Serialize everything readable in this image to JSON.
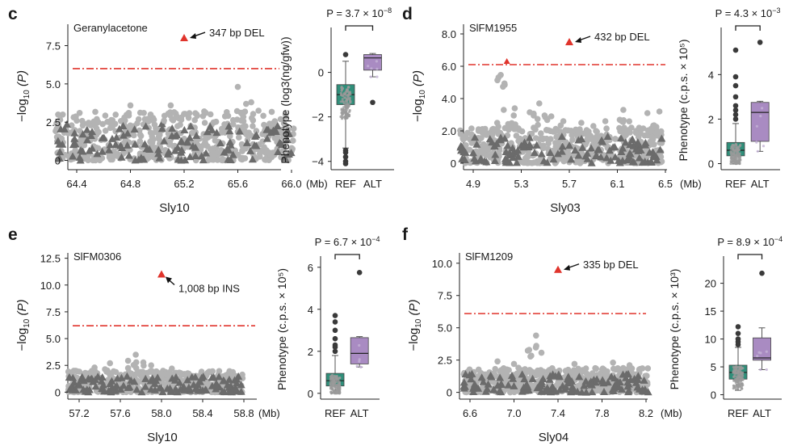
{
  "colors": {
    "snp_light": "#b3b3b3",
    "sv_dark": "#6b6b6b",
    "threshold": "#e0342c",
    "lead": "#e0342c",
    "ref_box": "#2f8f7a",
    "alt_box": "#a98bc2",
    "outlier": "#3a3a3a"
  },
  "chart_data": [
    {
      "panel": "c",
      "type": "scatter",
      "title": "Geranylacetone",
      "x_ticks": [
        "64.4",
        "64.8",
        "65.2",
        "65.6",
        "66.0"
      ],
      "x_unit": "(Mb)",
      "xlim": [
        64.2,
        66.05
      ],
      "xlabel": "Sly10",
      "y_ticks": [
        "0",
        "2.5",
        "5.0",
        "7.5"
      ],
      "ylim": [
        -0.5,
        8.9
      ],
      "ylabel": "-log10 (P)",
      "threshold": 6.0,
      "background_max": 3.2,
      "peaks": [
        [
          64.55,
          2.7
        ],
        [
          64.8,
          3.6
        ],
        [
          64.9,
          3.1
        ],
        [
          65.05,
          2.6
        ],
        [
          65.1,
          3.6
        ],
        [
          65.6,
          4.8
        ],
        [
          65.7,
          3.8
        ],
        [
          65.35,
          3.2
        ],
        [
          64.4,
          2.6
        ]
      ],
      "lead": {
        "x": 65.2,
        "y": 8.0,
        "label": "347 bp DEL",
        "side": "right"
      },
      "box": {
        "p_text": "P = 3.7 × 10",
        "p_exp": "−8",
        "ylabel": "Phenotype (log3(ng/gfw))",
        "y_ticks": [
          "−4",
          "−2",
          "0"
        ],
        "ylim": [
          -4.3,
          1.8
        ],
        "categories": [
          "REF",
          "ALT"
        ],
        "ref": {
          "q1": -1.45,
          "median": -1.0,
          "q3": -0.55,
          "wlo": -3.4,
          "whi": 0.5,
          "outliers": [
            -3.6,
            -3.8,
            -4.0,
            -4.1,
            -3.5,
            0.8
          ]
        },
        "alt": {
          "q1": 0.1,
          "median": 0.65,
          "q3": 0.8,
          "wlo": -0.2,
          "whi": 0.85,
          "outliers": [
            -1.35
          ]
        }
      }
    },
    {
      "panel": "d",
      "type": "scatter",
      "title": "SlFM1955",
      "x_ticks": [
        "4.9",
        "5.3",
        "5.7",
        "6.1",
        "6.5"
      ],
      "x_unit": "(Mb)",
      "xlim": [
        4.75,
        6.5
      ],
      "xlabel": "Sly03",
      "y_ticks": [
        "0",
        "2.0",
        "4.0",
        "6.0",
        "8.0"
      ],
      "ylim": [
        -0.3,
        8.6
      ],
      "ylabel": "-log10 (P)",
      "threshold": 6.1,
      "background_max": 2.2,
      "peaks": [
        [
          5.1,
          2.5
        ],
        [
          5.25,
          2.4
        ],
        [
          5.45,
          3.7
        ],
        [
          5.55,
          2.9
        ],
        [
          5.65,
          2.6
        ],
        [
          5.8,
          2.5
        ],
        [
          5.9,
          2.3
        ],
        [
          6.0,
          2.6
        ],
        [
          6.15,
          3.3
        ],
        [
          6.35,
          3.1
        ],
        [
          6.45,
          3.2
        ],
        [
          5.18,
          6.3
        ]
      ],
      "lead": {
        "x": 5.7,
        "y": 7.5,
        "label": "432 bp DEL",
        "side": "right"
      },
      "box": {
        "p_text": "P = 4.3 × 10",
        "p_exp": "−3",
        "ylabel": "Phenotype (c.p.s. × 10⁵)",
        "y_ticks": [
          "0",
          "2",
          "4"
        ],
        "ylim": [
          -0.2,
          5.9
        ],
        "categories": [
          "REF",
          "ALT"
        ],
        "ref": {
          "q1": 0.35,
          "median": 0.6,
          "q3": 0.95,
          "wlo": 0.0,
          "whi": 1.8,
          "outliers": [
            2.2,
            2.6,
            3.0,
            3.5,
            3.9,
            5.1,
            2.0,
            2.4
          ]
        },
        "alt": {
          "q1": 1.0,
          "median": 2.3,
          "q3": 2.75,
          "wlo": 0.55,
          "whi": 2.8,
          "outliers": [
            5.45
          ]
        }
      }
    },
    {
      "panel": "e",
      "type": "scatter",
      "title": "SlFM0306",
      "x_ticks": [
        "57.2",
        "57.6",
        "58.0",
        "58.4",
        "58.8"
      ],
      "x_unit": "(Mb)",
      "xlim": [
        57.05,
        58.82
      ],
      "xlabel": "Sly10",
      "y_ticks": [
        "0",
        "2.5",
        "5.0",
        "7.5",
        "10.0",
        "12.5"
      ],
      "ylim": [
        -0.5,
        13.0
      ],
      "ylabel": "-log10 (P)",
      "threshold": 6.2,
      "background_max": 2.0,
      "peaks": [
        [
          57.5,
          2.7
        ],
        [
          57.75,
          3.5
        ],
        [
          57.9,
          2.5
        ],
        [
          58.1,
          2.2
        ],
        [
          57.35,
          2.3
        ]
      ],
      "lead": {
        "x": 58.0,
        "y": 11.0,
        "label": "1,008 bp INS",
        "side": "below"
      },
      "box": {
        "p_text": "P = 6.7 × 10",
        "p_exp": "−4",
        "ylabel": "Phenotype (c.p.s. × 10⁵)",
        "y_ticks": [
          "0",
          "2",
          "4",
          "6"
        ],
        "ylim": [
          -0.2,
          6.3
        ],
        "categories": [
          "REF",
          "ALT"
        ],
        "ref": {
          "q1": 0.35,
          "median": 0.6,
          "q3": 0.95,
          "wlo": 0.0,
          "whi": 1.8,
          "outliers": [
            2.0,
            2.3,
            2.6,
            3.0,
            3.4,
            3.7,
            2.2
          ]
        },
        "alt": {
          "q1": 1.4,
          "median": 1.9,
          "q3": 2.65,
          "wlo": 1.25,
          "whi": 2.7,
          "outliers": [
            5.75
          ]
        }
      }
    },
    {
      "panel": "f",
      "type": "scatter",
      "title": "SlFM1209",
      "x_ticks": [
        "6.6",
        "7.0",
        "7.4",
        "7.8",
        "8.2"
      ],
      "x_unit": "(Mb)",
      "xlim": [
        6.5,
        8.25
      ],
      "xlabel": "Sly04",
      "y_ticks": [
        "0",
        "2.5",
        "5.0",
        "7.5",
        "10.0"
      ],
      "ylim": [
        -0.4,
        10.8
      ],
      "ylabel": "-log10 (P)",
      "threshold": 6.1,
      "background_max": 1.9,
      "peaks": [
        [
          7.2,
          4.4
        ],
        [
          6.85,
          2.4
        ],
        [
          7.0,
          2.2
        ],
        [
          7.55,
          2.2
        ],
        [
          7.9,
          2.3
        ],
        [
          8.05,
          2.1
        ]
      ],
      "lead": {
        "x": 7.4,
        "y": 9.5,
        "label": "335 bp DEL",
        "side": "right"
      },
      "box": {
        "p_text": "P = 8.9 × 10",
        "p_exp": "−4",
        "ylabel": "Phenotype (c.p.s. × 10³)",
        "y_ticks": [
          "0",
          "5",
          "10",
          "15",
          "20"
        ],
        "ylim": [
          -0.5,
          24
        ],
        "categories": [
          "REF",
          "ALT"
        ],
        "ref": {
          "q1": 2.8,
          "median": 4.0,
          "q3": 5.3,
          "wlo": 0.8,
          "whi": 8.5,
          "outliers": [
            9.0,
            10.0,
            11.0,
            12.2,
            9.5
          ]
        },
        "alt": {
          "q1": 6.2,
          "median": 6.6,
          "q3": 10.2,
          "wlo": 4.5,
          "whi": 12.0,
          "outliers": [
            21.8
          ]
        }
      }
    }
  ]
}
